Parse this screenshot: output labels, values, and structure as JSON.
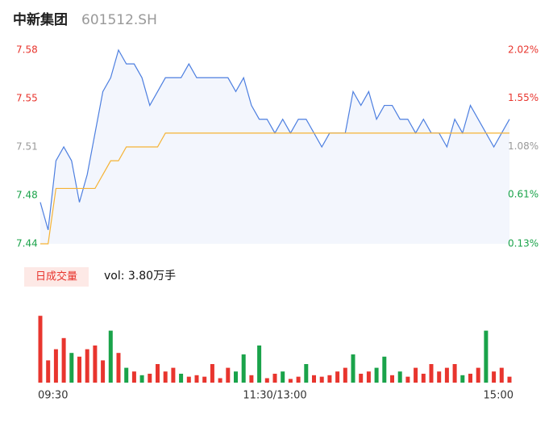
{
  "header": {
    "name": "中新集团",
    "code": "601512.SH"
  },
  "chart_data": [
    {
      "type": "line",
      "x": [
        0,
        4,
        8,
        12,
        16,
        20,
        24,
        28,
        32,
        36,
        40,
        44,
        48,
        52,
        56,
        60,
        64,
        68,
        72,
        76,
        80,
        84,
        88,
        92,
        96,
        100,
        104,
        108,
        112,
        116,
        120,
        124,
        128,
        132,
        136,
        140,
        144,
        148,
        152,
        156,
        160,
        164,
        168,
        172,
        176,
        180,
        184,
        188,
        192,
        196,
        200,
        204,
        208,
        212,
        216,
        220,
        224,
        228,
        232,
        236,
        240
      ],
      "xlim": [
        0,
        240
      ],
      "xticks": [
        {
          "value": 0,
          "label": "09:30"
        },
        {
          "value": 120,
          "label": "11:30/13:00"
        },
        {
          "value": 240,
          "label": "15:00"
        }
      ],
      "ylim": [
        7.44,
        7.58
      ],
      "yticks": [
        7.58,
        {
          "value": 7.545,
          "label": "7.55"
        },
        7.51,
        {
          "value": 7.475,
          "label": "7.48"
        },
        7.44
      ],
      "ytick_colors": [
        "#e8352e",
        "#e8352e",
        "#999999",
        "#1aa34a",
        "#1aa34a"
      ],
      "y2lim": [
        0.13,
        2.02
      ],
      "y2ticks": [
        {
          "value": 2.02,
          "label": "2.02%"
        },
        {
          "value": 1.55,
          "label": "1.55%"
        },
        {
          "value": 1.08,
          "label": "1.08%"
        },
        {
          "value": 0.61,
          "label": "0.61%"
        },
        {
          "value": 0.13,
          "label": "0.13%"
        }
      ],
      "y2tick_colors": [
        "#e8352e",
        "#e8352e",
        "#999999",
        "#1aa34a",
        "#1aa34a"
      ],
      "fill": "#f3f6fd",
      "series": [
        {
          "color": "#4d7fe0",
          "values": [
            7.47,
            7.45,
            7.5,
            7.51,
            7.5,
            7.47,
            7.49,
            7.52,
            7.55,
            7.56,
            7.58,
            7.57,
            7.57,
            7.56,
            7.54,
            7.55,
            7.56,
            7.56,
            7.56,
            7.57,
            7.56,
            7.56,
            7.56,
            7.56,
            7.56,
            7.55,
            7.56,
            7.54,
            7.53,
            7.53,
            7.52,
            7.53,
            7.52,
            7.53,
            7.53,
            7.52,
            7.51,
            7.52,
            7.52,
            7.52,
            7.55,
            7.54,
            7.55,
            7.53,
            7.54,
            7.54,
            7.53,
            7.53,
            7.52,
            7.53,
            7.52,
            7.52,
            7.51,
            7.53,
            7.52,
            7.54,
            7.53,
            7.52,
            7.51,
            7.52,
            7.53
          ]
        },
        {
          "color": "#f5b335",
          "values": [
            7.44,
            7.44,
            7.48,
            7.48,
            7.48,
            7.48,
            7.48,
            7.48,
            7.49,
            7.5,
            7.5,
            7.51,
            7.51,
            7.51,
            7.51,
            7.51,
            7.52,
            7.52,
            7.52,
            7.52,
            7.52,
            7.52,
            7.52,
            7.52,
            7.52,
            7.52,
            7.52,
            7.52,
            7.52,
            7.52,
            7.52,
            7.52,
            7.52,
            7.52,
            7.52,
            7.52,
            7.52,
            7.52,
            7.52,
            7.52,
            7.52,
            7.52,
            7.52,
            7.52,
            7.52,
            7.52,
            7.52,
            7.52,
            7.52,
            7.52,
            7.52,
            7.52,
            7.52,
            7.52,
            7.52,
            7.52,
            7.52,
            7.52,
            7.52,
            7.52,
            7.52
          ]
        }
      ]
    },
    {
      "type": "bar",
      "legend_label": "日成交量",
      "summary": "vol: 3.80万手",
      "ylim": [
        0,
        100
      ],
      "values": [
        90,
        30,
        45,
        60,
        40,
        35,
        45,
        50,
        30,
        70,
        40,
        20,
        15,
        10,
        12,
        25,
        15,
        20,
        12,
        8,
        10,
        8,
        25,
        6,
        20,
        15,
        38,
        10,
        50,
        6,
        12,
        15,
        5,
        8,
        25,
        10,
        8,
        10,
        15,
        20,
        38,
        12,
        15,
        20,
        35,
        10,
        15,
        8,
        20,
        12,
        25,
        15,
        20,
        25,
        10,
        12,
        20,
        70,
        15,
        20,
        8
      ],
      "colors": [
        "#e8352e",
        "#e8352e",
        "#e8352e",
        "#e8352e",
        "#1aa34a",
        "#e8352e",
        "#e8352e",
        "#e8352e",
        "#e8352e",
        "#1aa34a",
        "#e8352e",
        "#1aa34a",
        "#e8352e",
        "#1aa34a",
        "#e8352e",
        "#e8352e",
        "#e8352e",
        "#e8352e",
        "#1aa34a",
        "#e8352e",
        "#e8352e",
        "#e8352e",
        "#e8352e",
        "#e8352e",
        "#e8352e",
        "#1aa34a",
        "#1aa34a",
        "#e8352e",
        "#1aa34a",
        "#e8352e",
        "#e8352e",
        "#1aa34a",
        "#e8352e",
        "#e8352e",
        "#1aa34a",
        "#e8352e",
        "#e8352e",
        "#e8352e",
        "#e8352e",
        "#e8352e",
        "#1aa34a",
        "#e8352e",
        "#e8352e",
        "#1aa34a",
        "#1aa34a",
        "#e8352e",
        "#1aa34a",
        "#e8352e",
        "#e8352e",
        "#e8352e",
        "#e8352e",
        "#e8352e",
        "#e8352e",
        "#e8352e",
        "#1aa34a",
        "#e8352e",
        "#e8352e",
        "#1aa34a",
        "#e8352e",
        "#e8352e",
        "#e8352e"
      ]
    }
  ]
}
